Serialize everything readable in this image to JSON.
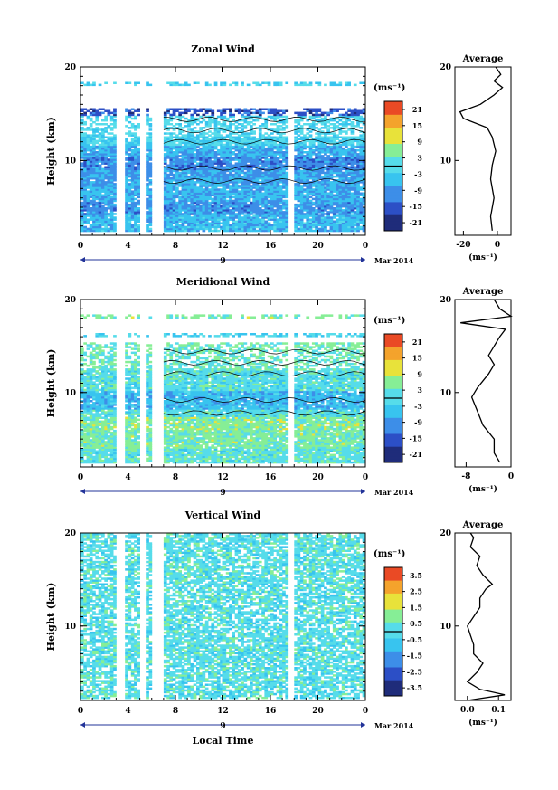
{
  "xlabel_bottom": "Local Time",
  "chart_data": [
    {
      "type": "heatmap",
      "title": "Zonal Wind",
      "ylabel": "Height (km)",
      "ylim": [
        2,
        20
      ],
      "yticks": [
        "20",
        "10"
      ],
      "xticks": [
        "0",
        "4",
        "8",
        "12",
        "16",
        "20",
        "0"
      ],
      "day_label": "9",
      "date_label": "Mar 2014",
      "unit_label": "(ms⁻¹)",
      "colorbar_ticks": [
        "21",
        "15",
        "9",
        "3",
        "-3",
        "-9",
        "-15",
        "-21"
      ],
      "colorbar_range": [
        -24,
        24
      ],
      "colors_low_to_high": [
        "#1f2c7a",
        "#2c4fc6",
        "#3d8ee8",
        "#38c4ef",
        "#56dcea",
        "#86ee96",
        "#e8e23a",
        "#f4a32c",
        "#ea4a25"
      ],
      "layers": [
        {
          "zmin": 2.4,
          "zmax": 4.2,
          "value": -6
        },
        {
          "zmin": 4.2,
          "zmax": 5.6,
          "value": -10
        },
        {
          "zmin": 5.6,
          "zmax": 7.5,
          "value": -7
        },
        {
          "zmin": 7.5,
          "zmax": 9.0,
          "value": -9
        },
        {
          "zmin": 9.0,
          "zmax": 10.5,
          "value": -11
        },
        {
          "zmin": 10.5,
          "zmax": 11.6,
          "value": -7
        },
        {
          "zmin": 11.6,
          "zmax": 12.6,
          "value": -3
        },
        {
          "zmin": 12.6,
          "zmax": 14.8,
          "value": -2
        },
        {
          "zmin": 14.8,
          "zmax": 15.6,
          "value": -16
        },
        {
          "zmin": 18.0,
          "zmax": 18.4,
          "value": -3
        }
      ],
      "gaps_hours": [
        [
          3.0,
          3.6
        ],
        [
          5.0,
          5.3
        ],
        [
          6.0,
          6.8
        ],
        [
          17.4,
          18.0
        ]
      ],
      "profile": {
        "title": "Average",
        "xlabel": "(ms⁻¹)",
        "xticks": [
          -20,
          0
        ],
        "xlim": [
          -25,
          8
        ],
        "height_km": [
          2.5,
          4,
          6,
          8,
          9.5,
          11,
          12.5,
          13.5,
          14.5,
          15.2,
          16,
          17,
          17.8,
          18.5,
          19.2,
          20
        ],
        "value": [
          -3,
          -4,
          -2,
          -4,
          -3,
          -1,
          -3,
          -6,
          -20,
          -22,
          -10,
          -2,
          3,
          -2,
          2,
          -1
        ]
      }
    },
    {
      "type": "heatmap",
      "title": "Meridional Wind",
      "ylabel": "Height (km)",
      "ylim": [
        2,
        20
      ],
      "yticks": [
        "20",
        "10"
      ],
      "xticks": [
        "0",
        "4",
        "8",
        "12",
        "16",
        "20",
        "0"
      ],
      "day_label": "9",
      "date_label": "Mar 2014",
      "unit_label": "(ms⁻¹)",
      "colorbar_ticks": [
        "21",
        "15",
        "9",
        "3",
        "-3",
        "-9",
        "-15",
        "-21"
      ],
      "colorbar_range": [
        -24,
        24
      ],
      "colors_low_to_high": [
        "#1f2c7a",
        "#2c4fc6",
        "#3d8ee8",
        "#38c4ef",
        "#56dcea",
        "#86ee96",
        "#e8e23a",
        "#f4a32c",
        "#ea4a25"
      ],
      "layers": [
        {
          "zmin": 2.4,
          "zmax": 4.0,
          "value": 1
        },
        {
          "zmin": 4.0,
          "zmax": 6.0,
          "value": 4
        },
        {
          "zmin": 6.0,
          "zmax": 7.5,
          "value": 5
        },
        {
          "zmin": 7.5,
          "zmax": 8.3,
          "value": 0
        },
        {
          "zmin": 8.3,
          "zmax": 10.3,
          "value": -6
        },
        {
          "zmin": 10.3,
          "zmax": 12.5,
          "value": 0
        },
        {
          "zmin": 12.5,
          "zmax": 14.5,
          "value": 2
        },
        {
          "zmin": 14.5,
          "zmax": 15.5,
          "value": 3
        },
        {
          "zmin": 16.0,
          "zmax": 16.5,
          "value": -3
        },
        {
          "zmin": 18.0,
          "zmax": 18.4,
          "value": 4
        }
      ],
      "gaps_hours": [
        [
          3.0,
          3.6
        ],
        [
          5.0,
          5.3
        ],
        [
          6.0,
          6.8
        ],
        [
          17.4,
          18.0
        ]
      ],
      "profile": {
        "title": "Average",
        "xlabel": "(ms⁻¹)",
        "xticks": [
          -8,
          0
        ],
        "xlim": [
          -10,
          0
        ],
        "height_km": [
          2.5,
          3.5,
          5,
          6.5,
          8,
          9.5,
          10.5,
          12,
          13,
          14,
          15,
          16,
          16.8,
          17.5,
          18.2,
          19,
          20
        ],
        "value": [
          -2,
          -3,
          -3,
          -5,
          -6,
          -7,
          -6,
          -4,
          -3,
          -4,
          -3,
          -2,
          -1,
          -9,
          0,
          -2,
          -3
        ]
      }
    },
    {
      "type": "heatmap",
      "title": "Vertical Wind",
      "ylabel": "Height (km)",
      "ylim": [
        2,
        20
      ],
      "yticks": [
        "20",
        "10"
      ],
      "xticks": [
        "0",
        "4",
        "8",
        "12",
        "16",
        "20",
        "0"
      ],
      "day_label": "9",
      "date_label": "Mar 2014",
      "unit_label": "(ms⁻¹)",
      "colorbar_ticks": [
        "3.5",
        "2.5",
        "1.5",
        "0.5",
        "-0.5",
        "-1.5",
        "-2.5",
        "-3.5"
      ],
      "colorbar_range": [
        -4,
        4
      ],
      "colors_low_to_high": [
        "#1f2c7a",
        "#2c4fc6",
        "#3d8ee8",
        "#38c4ef",
        "#56dcea",
        "#86ee96",
        "#e8e23a",
        "#f4a32c",
        "#ea4a25"
      ],
      "layers": [
        {
          "zmin": 2.2,
          "zmax": 20,
          "value": 0
        }
      ],
      "gaps_hours": [
        [
          3.0,
          3.6
        ],
        [
          5.0,
          5.3
        ],
        [
          6.0,
          6.8
        ],
        [
          17.4,
          18.0
        ]
      ],
      "profile": {
        "title": "Average",
        "xlabel": "(ms⁻¹)",
        "xticks": [
          0.0,
          0.1
        ],
        "xlim": [
          -0.04,
          0.14
        ],
        "height_km": [
          2,
          2.6,
          3.2,
          4,
          5,
          6,
          7,
          8,
          9,
          10,
          11,
          12,
          13,
          14,
          14.5,
          15.5,
          16.5,
          17.5,
          18.5,
          19.5,
          20
        ],
        "value": [
          0.0,
          0.12,
          0.04,
          0.0,
          0.03,
          0.05,
          0.02,
          0.02,
          0.01,
          0.0,
          0.02,
          0.04,
          0.04,
          0.06,
          0.08,
          0.05,
          0.03,
          0.04,
          0.01,
          0.02,
          0.01
        ]
      }
    }
  ]
}
